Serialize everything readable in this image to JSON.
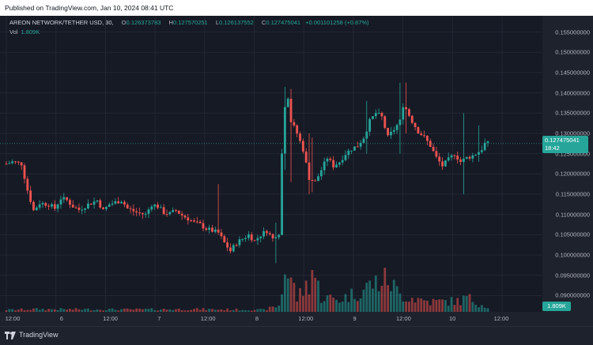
{
  "header": {
    "published_text": "Published on TradingView.com, Jan 10, 2024 08:41 UTC"
  },
  "legend": {
    "symbol": "AREON NETWORK/TETHER USD, 30,",
    "open_label": "O",
    "open": "0.126373783",
    "high_label": "H",
    "high": "0.127570251",
    "low_label": "L",
    "low": "0.126137552",
    "close_label": "C",
    "close": "0.127475041",
    "change": "+0.001101258 (+0.87%)"
  },
  "volume_legend": {
    "label": "Vol",
    "value": "1.809K"
  },
  "price_axis": {
    "labels": [
      "0.155000000",
      "0.150000000",
      "0.145000000",
      "0.140000000",
      "0.135000000",
      "0.130000000",
      "0.125000000",
      "0.120000000",
      "0.115000000",
      "0.110000000",
      "0.105000000",
      "0.100000000",
      "0.095000000",
      "0.090000000"
    ],
    "current_price": "0.127475041",
    "countdown": "18:42",
    "volume_tag": "1.809K"
  },
  "time_axis": {
    "labels": [
      "12:00",
      "6",
      "12:00",
      "7",
      "12:00",
      "8",
      "12:00",
      "9",
      "12:00",
      "10",
      "12:00"
    ]
  },
  "footer": {
    "brand": "TradingView"
  },
  "colors": {
    "up": "#26a69a",
    "down": "#ef5350",
    "background": "#161a25"
  },
  "chart_data": {
    "type": "candlestick",
    "symbol": "AREON NETWORK/TETHER USD",
    "interval": "30",
    "ylim": [
      0.086,
      0.159
    ],
    "y_ticks": [
      0.155,
      0.15,
      0.145,
      0.14,
      0.135,
      0.13,
      0.125,
      0.12,
      0.115,
      0.11,
      0.105,
      0.1,
      0.095,
      0.09
    ],
    "close_path": [
      [
        0,
        0.1225
      ],
      [
        2,
        0.123
      ],
      [
        5,
        0.1225
      ],
      [
        7,
        0.116
      ],
      [
        9,
        0.111
      ],
      [
        11,
        0.1128
      ],
      [
        14,
        0.1125
      ],
      [
        16,
        0.1115
      ],
      [
        18,
        0.114
      ],
      [
        20,
        0.1135
      ],
      [
        22,
        0.112
      ],
      [
        24,
        0.1112
      ],
      [
        27,
        0.1125
      ],
      [
        30,
        0.1135
      ],
      [
        32,
        0.111
      ],
      [
        34,
        0.1125
      ],
      [
        36,
        0.113
      ],
      [
        38,
        0.1135
      ],
      [
        40,
        0.1115
      ],
      [
        43,
        0.1105
      ],
      [
        46,
        0.11
      ],
      [
        48,
        0.1125
      ],
      [
        50,
        0.112
      ],
      [
        52,
        0.1105
      ],
      [
        54,
        0.1102
      ],
      [
        56,
        0.111
      ],
      [
        58,
        0.1098
      ],
      [
        60,
        0.109
      ],
      [
        62,
        0.108
      ],
      [
        64,
        0.1075
      ],
      [
        66,
        0.1065
      ],
      [
        68,
        0.106
      ],
      [
        70,
        0.1055
      ],
      [
        72,
        0.103
      ],
      [
        74,
        0.101
      ],
      [
        76,
        0.103
      ],
      [
        78,
        0.104
      ],
      [
        80,
        0.105
      ],
      [
        82,
        0.1035
      ],
      [
        84,
        0.105
      ],
      [
        86,
        0.106
      ],
      [
        88,
        0.104
      ],
      [
        89,
        0.105
      ],
      [
        90,
        0.1055
      ],
      [
        91,
        0.125
      ],
      [
        92,
        0.137
      ],
      [
        93,
        0.139
      ],
      [
        94,
        0.133
      ],
      [
        96,
        0.13
      ],
      [
        98,
        0.126
      ],
      [
        100,
        0.119
      ],
      [
        102,
        0.118
      ],
      [
        104,
        0.121
      ],
      [
        106,
        0.124
      ],
      [
        108,
        0.122
      ],
      [
        110,
        0.123
      ],
      [
        112,
        0.125
      ],
      [
        114,
        0.1262
      ],
      [
        116,
        0.127
      ],
      [
        118,
        0.129
      ],
      [
        119,
        0.131
      ],
      [
        120,
        0.133
      ],
      [
        122,
        0.135
      ],
      [
        124,
        0.134
      ],
      [
        126,
        0.129
      ],
      [
        128,
        0.131
      ],
      [
        130,
        0.133
      ],
      [
        131,
        0.137
      ],
      [
        132,
        0.136
      ],
      [
        134,
        0.133
      ],
      [
        136,
        0.1305
      ],
      [
        138,
        0.129
      ],
      [
        140,
        0.127
      ],
      [
        142,
        0.124
      ],
      [
        144,
        0.122
      ],
      [
        146,
        0.1235
      ],
      [
        148,
        0.125
      ],
      [
        150,
        0.123
      ],
      [
        152,
        0.124
      ],
      [
        154,
        0.1245
      ],
      [
        156,
        0.1255
      ],
      [
        157,
        0.1262
      ],
      [
        158,
        0.1275
      ]
    ],
    "notable_wicks": [
      {
        "i": 92,
        "high": 0.1415,
        "low": 0.121
      },
      {
        "i": 94,
        "high": 0.141,
        "low": 0.118
      },
      {
        "i": 100,
        "high": 0.13,
        "low": 0.115
      },
      {
        "i": 101,
        "high": 0.129,
        "low": 0.1155
      },
      {
        "i": 130,
        "high": 0.1425,
        "low": 0.125
      },
      {
        "i": 119,
        "high": 0.138,
        "low": 0.125
      },
      {
        "i": 132,
        "high": 0.1425,
        "low": 0.13
      },
      {
        "i": 151,
        "high": 0.135,
        "low": 0.115
      },
      {
        "i": 156,
        "high": 0.132,
        "low": 0.123
      },
      {
        "i": 70,
        "high": 0.1175,
        "low": 0.105
      },
      {
        "i": 89,
        "high": 0.108,
        "low": 0.098
      }
    ],
    "volume_path": [
      [
        0,
        0.3
      ],
      [
        10,
        0.4
      ],
      [
        40,
        0.35
      ],
      [
        60,
        0.4
      ],
      [
        85,
        0.3
      ],
      [
        90,
        0.9
      ],
      [
        91,
        3.0
      ],
      [
        92,
        6.6
      ],
      [
        93,
        5.4
      ],
      [
        94,
        5.0
      ],
      [
        96,
        2.0
      ],
      [
        100,
        4.4
      ],
      [
        101,
        6.5
      ],
      [
        104,
        2.2
      ],
      [
        110,
        1.8
      ],
      [
        118,
        3.3
      ],
      [
        120,
        4.0
      ],
      [
        126,
        4.8
      ],
      [
        130,
        2.5
      ],
      [
        140,
        1.5
      ],
      [
        150,
        1.6
      ],
      [
        152,
        2.1
      ],
      [
        158,
        0.9
      ]
    ]
  }
}
